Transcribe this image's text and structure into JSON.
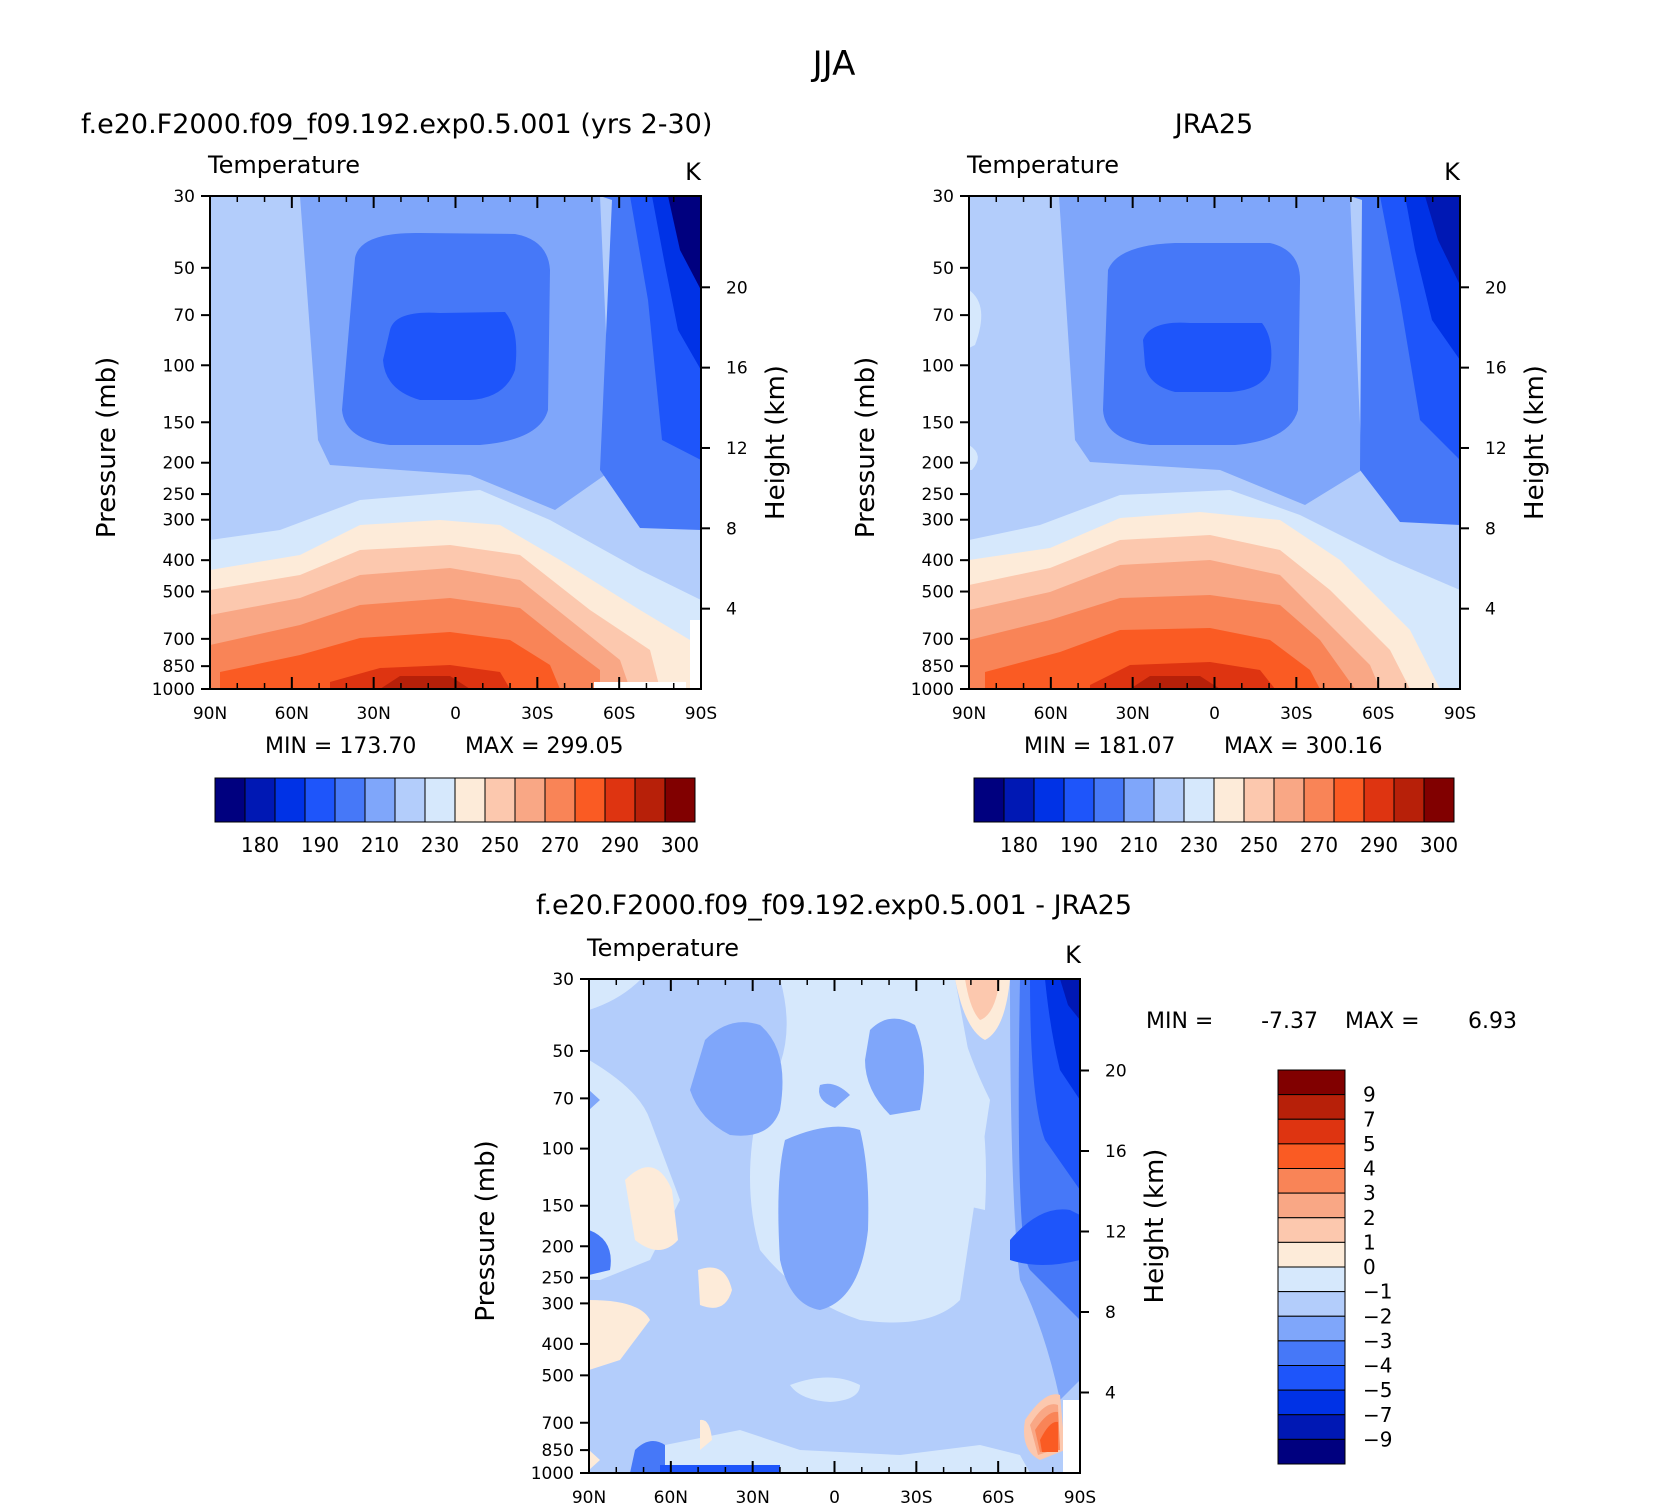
{
  "figure": {
    "title": "JJA"
  },
  "palette": {
    "full": [
      "#00007f",
      "#0018b4",
      "#0032e6",
      "#1e55fa",
      "#4678f8",
      "#7fa6fa",
      "#b3cdfb",
      "#d6e8fc",
      "#fdebd9",
      "#fcc8ae",
      "#f9a785",
      "#f98457",
      "#fa5b23",
      "#de3411",
      "#b72009",
      "#810000"
    ],
    "diff": [
      "#00007f",
      "#0018b4",
      "#0032e6",
      "#1e55fa",
      "#4678f8",
      "#7fa6fa",
      "#b3cdfb",
      "#d6e8fc",
      "#fdebd9",
      "#fcc8ae",
      "#f9a785",
      "#f98457",
      "#fa5b23",
      "#de3411",
      "#b72009",
      "#810000"
    ]
  },
  "panels": {
    "model": {
      "title": "f.e20.F2000.f09_f09.192.exp0.5.001 (yrs 2-30)",
      "variable": "Temperature",
      "units": "K",
      "min_label": "MIN = 173.70",
      "max_label": "MAX = 299.05"
    },
    "obs": {
      "title": "JRA25",
      "variable": "Temperature",
      "units": "K",
      "min_label": "MIN = 181.07",
      "max_label": "MAX = 300.16"
    },
    "diff": {
      "title": "f.e20.F2000.f09_f09.192.exp0.5.001 - JRA25",
      "variable": "Temperature",
      "units": "K",
      "min_label": "MIN =",
      "min_value": "-7.37",
      "max_label": "MAX =",
      "max_value": "6.93"
    }
  },
  "chart_data": [
    {
      "type": "heatmap",
      "name": "f.e20.F2000.f09_f09.192.exp0.5.001 (yrs 2-30)",
      "xlabel": "",
      "ylabel": "Pressure (mb)",
      "ylabel_right": "Height (km)",
      "x_ticks": [
        "90N",
        "60N",
        "30N",
        "0",
        "30S",
        "60S",
        "90S"
      ],
      "x_values": [
        90,
        60,
        30,
        0,
        -30,
        -60,
        -90
      ],
      "y_ticks": [
        30,
        50,
        70,
        100,
        150,
        200,
        250,
        300,
        400,
        500,
        700,
        850,
        1000
      ],
      "y_scale": "log",
      "ylim": [
        1000,
        30
      ],
      "height_ticks": [
        4,
        8,
        12,
        16,
        20
      ],
      "contour_levels": [
        180,
        185,
        190,
        200,
        210,
        220,
        230,
        240,
        250,
        260,
        270,
        280,
        290,
        295,
        300
      ],
      "colorbar_labels": [
        "180",
        "190",
        "210",
        "230",
        "250",
        "270",
        "290",
        "300"
      ],
      "min": 173.7,
      "max": 299.05
    },
    {
      "type": "heatmap",
      "name": "JRA25",
      "xlabel": "",
      "ylabel": "Pressure (mb)",
      "ylabel_right": "Height (km)",
      "x_ticks": [
        "90N",
        "60N",
        "30N",
        "0",
        "30S",
        "60S",
        "90S"
      ],
      "x_values": [
        90,
        60,
        30,
        0,
        -30,
        -60,
        -90
      ],
      "y_ticks": [
        30,
        50,
        70,
        100,
        150,
        200,
        250,
        300,
        400,
        500,
        700,
        850,
        1000
      ],
      "y_scale": "log",
      "ylim": [
        1000,
        30
      ],
      "height_ticks": [
        4,
        8,
        12,
        16,
        20
      ],
      "contour_levels": [
        180,
        185,
        190,
        200,
        210,
        220,
        230,
        240,
        250,
        260,
        270,
        280,
        290,
        295,
        300
      ],
      "colorbar_labels": [
        "180",
        "190",
        "210",
        "230",
        "250",
        "270",
        "290",
        "300"
      ],
      "min": 181.07,
      "max": 300.16
    },
    {
      "type": "heatmap",
      "name": "f.e20.F2000.f09_f09.192.exp0.5.001 - JRA25",
      "xlabel": "",
      "ylabel": "Pressure (mb)",
      "ylabel_right": "Height (km)",
      "x_ticks": [
        "90N",
        "60N",
        "30N",
        "0",
        "30S",
        "60S",
        "90S"
      ],
      "x_values": [
        90,
        60,
        30,
        0,
        -30,
        -60,
        -90
      ],
      "y_ticks": [
        30,
        50,
        70,
        100,
        150,
        200,
        250,
        300,
        400,
        500,
        700,
        850,
        1000
      ],
      "y_scale": "log",
      "ylim": [
        1000,
        30
      ],
      "height_ticks": [
        4,
        8,
        12,
        16,
        20
      ],
      "contour_levels": [
        -9,
        -7,
        -5,
        -4,
        -3,
        -2,
        -1,
        0,
        1,
        2,
        3,
        4,
        5,
        7,
        9
      ],
      "colorbar_labels": [
        "9",
        "7",
        "5",
        "4",
        "3",
        "2",
        "1",
        "0",
        "−1",
        "−2",
        "−3",
        "−4",
        "−5",
        "−7",
        "−9"
      ],
      "min": -7.37,
      "max": 6.93
    }
  ]
}
